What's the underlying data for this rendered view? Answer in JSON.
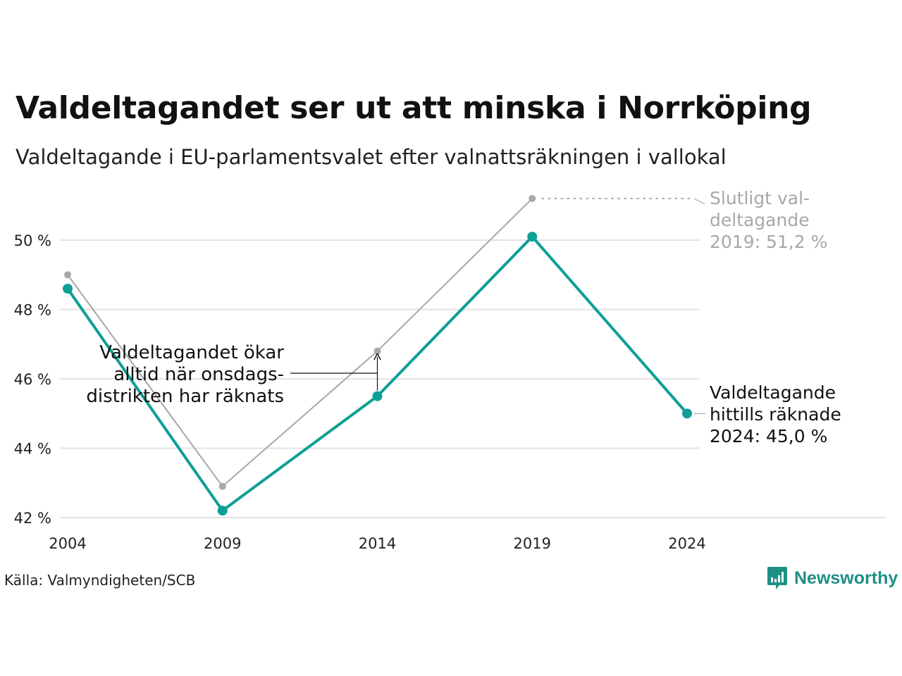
{
  "title": "Valdeltagandet ser ut att minska i Norrköping",
  "subtitle": "Valdeltagande i EU-parlamentsvalet efter valnattsräkningen i vallokal",
  "source": "Källa: Valmyndigheten/SCB",
  "brand": "Newsworthy",
  "colors": {
    "counted": "#0e9f96",
    "final": "#a8a8a8",
    "grid": "#e3e3e3",
    "brand": "#1f8f84"
  },
  "chart_data": {
    "type": "line",
    "x": [
      2004,
      2009,
      2014,
      2019,
      2024
    ],
    "x_tick_labels": [
      "2004",
      "2009",
      "2014",
      "2019",
      "2024"
    ],
    "y_ticks": [
      42,
      44,
      46,
      48,
      50
    ],
    "y_tick_labels": [
      "42 %",
      "44 %",
      "46 %",
      "48 %",
      "50 %"
    ],
    "ylim": [
      42,
      51.2
    ],
    "grid": true,
    "series": [
      {
        "key": "final",
        "values": [
          49.0,
          42.9,
          46.8,
          51.2,
          null
        ]
      },
      {
        "key": "counted",
        "values": [
          48.6,
          42.2,
          45.5,
          50.1,
          45.0
        ]
      }
    ],
    "annotations": {
      "final": [
        "Slutligt val-",
        "deltagande",
        "2019: 51,2 %"
      ],
      "counted": [
        "Valdeltagande",
        "hittills räknade",
        "2024: 45,0 %"
      ],
      "note": [
        "Valdeltagandet ökar",
        "alltid när onsdags-",
        "distrikten har räknats"
      ]
    }
  }
}
